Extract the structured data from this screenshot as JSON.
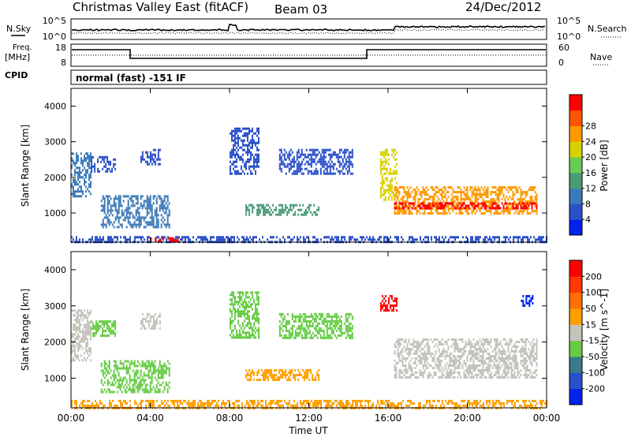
{
  "header": {
    "title": "Christmas Valley East (fitACF)",
    "beam": "Beam 03",
    "date": "24/Dec/2012"
  },
  "panel_labels": {
    "nsky": "N.Sky",
    "nsearch": "N.Search",
    "freq": "Freq.",
    "freq_unit": "[MHz]",
    "nave": "Nave",
    "cpid": "CPID",
    "cpid_value": "normal (fast) -151 IF"
  },
  "noise_axis": {
    "left_ticks": [
      "10^5",
      "10^0"
    ],
    "right_ticks": [
      "10^5",
      "10^0"
    ]
  },
  "freq_axis": {
    "left_ticks": [
      18,
      8
    ],
    "right_ticks": [
      60,
      0
    ]
  },
  "colors": {
    "power_scale": [
      "#0022ee",
      "#2a50c8",
      "#3a7ab8",
      "#4c9a78",
      "#66cc55",
      "#d8d000",
      "#ff9a00",
      "#ff5500",
      "#ff0000"
    ],
    "velocity_scale": [
      "#0022ee",
      "#2a50c8",
      "#3a7a8a",
      "#66cc44",
      "#c4c4bc",
      "#ffa000",
      "#ff7000",
      "#ff3800",
      "#ff0000"
    ]
  },
  "chart_data": [
    {
      "type": "heatmap",
      "name": "Power",
      "xlabel": "",
      "ylabel": "Slant Range [km]",
      "ylim": [
        180,
        4500
      ],
      "xlim": [
        0,
        24
      ],
      "y_ticks": [
        1000,
        2000,
        3000,
        4000
      ],
      "x_ticks": [
        "00:00",
        "04:00",
        "08:00",
        "12:00",
        "16:00",
        "20:00",
        "00:00"
      ],
      "colorbar": {
        "label": "Power [dB]",
        "ticks": [
          4,
          8,
          12,
          16,
          20,
          24,
          28
        ]
      },
      "regions": [
        {
          "t": [
            0.0,
            1.0
          ],
          "r": [
            1500,
            2700
          ],
          "level": 2
        },
        {
          "t": [
            1.0,
            2.2
          ],
          "r": [
            2200,
            2600
          ],
          "level": 1
        },
        {
          "t": [
            1.5,
            5.0
          ],
          "r": [
            600,
            1500
          ],
          "level": 2
        },
        {
          "t": [
            3.5,
            4.5
          ],
          "r": [
            2400,
            2800
          ],
          "level": 1
        },
        {
          "t": [
            8.0,
            9.5
          ],
          "r": [
            2100,
            3400
          ],
          "level": 1
        },
        {
          "t": [
            8.8,
            12.5
          ],
          "r": [
            980,
            1250
          ],
          "level": 3
        },
        {
          "t": [
            10.5,
            14.2
          ],
          "r": [
            2100,
            2800
          ],
          "level": 1
        },
        {
          "t": [
            15.6,
            16.4
          ],
          "r": [
            1400,
            2800
          ],
          "level": 5
        },
        {
          "t": [
            16.3,
            23.5
          ],
          "r": [
            1000,
            1750
          ],
          "level": 6
        },
        {
          "t": [
            16.3,
            23.5
          ],
          "r": [
            1150,
            1300
          ],
          "level": 8
        },
        {
          "t": [
            0.0,
            24.0
          ],
          "r": [
            180,
            350
          ],
          "level": 1
        },
        {
          "t": [
            4.0,
            5.5
          ],
          "r": [
            200,
            320
          ],
          "level": 8
        }
      ]
    },
    {
      "type": "heatmap",
      "name": "Velocity",
      "xlabel": "Time UT",
      "ylabel": "Slant Range [km]",
      "ylim": [
        180,
        4500
      ],
      "xlim": [
        0,
        24
      ],
      "y_ticks": [
        1000,
        2000,
        3000,
        4000
      ],
      "x_ticks": [
        "00:00",
        "04:00",
        "08:00",
        "12:00",
        "16:00",
        "20:00",
        "00:00"
      ],
      "colorbar": {
        "label": "Velocity [m s^-1]",
        "ticks": [
          200,
          100,
          50,
          15,
          -15,
          -50,
          -100,
          -200
        ]
      },
      "regions": [
        {
          "t": [
            0.0,
            1.0
          ],
          "r": [
            1500,
            2900
          ],
          "level": 4
        },
        {
          "t": [
            1.0,
            2.2
          ],
          "r": [
            2200,
            2600
          ],
          "level": 3
        },
        {
          "t": [
            1.5,
            5.0
          ],
          "r": [
            600,
            1500
          ],
          "level": 3
        },
        {
          "t": [
            3.5,
            4.5
          ],
          "r": [
            2400,
            2800
          ],
          "level": 4
        },
        {
          "t": [
            8.0,
            9.5
          ],
          "r": [
            2100,
            3400
          ],
          "level": 3
        },
        {
          "t": [
            8.8,
            12.5
          ],
          "r": [
            980,
            1250
          ],
          "level": 5
        },
        {
          "t": [
            10.5,
            14.2
          ],
          "r": [
            2100,
            2800
          ],
          "level": 3
        },
        {
          "t": [
            15.6,
            16.4
          ],
          "r": [
            2900,
            3300
          ],
          "level": 8
        },
        {
          "t": [
            16.3,
            23.5
          ],
          "r": [
            1000,
            2100
          ],
          "level": 4
        },
        {
          "t": [
            22.7,
            23.3
          ],
          "r": [
            3000,
            3300
          ],
          "level": 0
        },
        {
          "t": [
            0.0,
            24.0
          ],
          "r": [
            180,
            400
          ],
          "level": 5
        }
      ]
    }
  ]
}
